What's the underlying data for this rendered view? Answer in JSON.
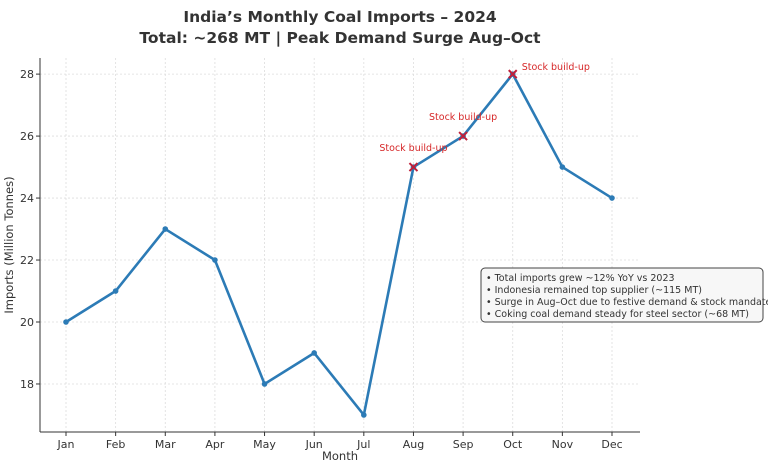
{
  "chart_data": {
    "type": "line",
    "title": "India’s Monthly Coal Imports – 2024",
    "subtitle": "Total: ~268 MT | Peak Demand Surge Aug–Oct",
    "xlabel": "Month",
    "ylabel": "Imports (Million Tonnes)",
    "categories": [
      "Jan",
      "Feb",
      "Mar",
      "Apr",
      "May",
      "Jun",
      "Jul",
      "Aug",
      "Sep",
      "Oct",
      "Nov",
      "Dec"
    ],
    "values": [
      20,
      21,
      23,
      22,
      18,
      19,
      17,
      25,
      26,
      28,
      25,
      24
    ],
    "ylim": [
      16.45,
      28.52
    ],
    "yticks": [
      18,
      20,
      22,
      24,
      26,
      28
    ],
    "grid": true,
    "line_color": "#2c7bb6",
    "annotations": [
      {
        "category": "Aug",
        "text": "Stock build-up"
      },
      {
        "category": "Sep",
        "text": "Stock build-up"
      },
      {
        "category": "Oct",
        "text": "Stock build-up"
      }
    ],
    "annotation_color": "#d62728",
    "notes": [
      "• Total imports grew ~12% YoY vs 2023",
      "• Indonesia remained top supplier (~115 MT)",
      "• Surge in Aug–Oct due to festive demand & stock mandates",
      "• Coking coal demand steady for steel sector (~68 MT)"
    ],
    "notes_placement": "center-right"
  }
}
